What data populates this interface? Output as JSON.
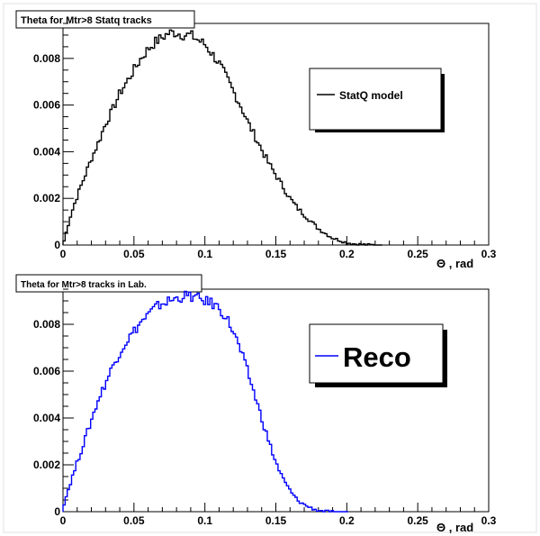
{
  "chart_data": [
    {
      "type": "line",
      "title": "Theta for Mtr>8 Statq tracks",
      "xlabel": "",
      "ylabel": "",
      "xlim": [
        0,
        0.3
      ],
      "ylim": [
        0,
        0.0095
      ],
      "x_ticks": [
        "0",
        "0.05",
        "0.1",
        "0.15",
        "0.2",
        "0.25",
        "0.3"
      ],
      "y_ticks": [
        "0",
        "0.002",
        "0.004",
        "0.006",
        "0.008"
      ],
      "legend": {
        "placement": "top-right",
        "entries": [
          "StatQ model"
        ]
      },
      "color": "#000000",
      "series": [
        {
          "name": "StatQ model",
          "x": [
            0.0,
            0.005,
            0.01,
            0.015,
            0.02,
            0.025,
            0.03,
            0.035,
            0.04,
            0.045,
            0.05,
            0.055,
            0.06,
            0.065,
            0.07,
            0.075,
            0.08,
            0.085,
            0.09,
            0.095,
            0.1,
            0.105,
            0.11,
            0.115,
            0.12,
            0.125,
            0.13,
            0.135,
            0.14,
            0.145,
            0.15,
            0.155,
            0.16,
            0.165,
            0.17,
            0.175,
            0.18,
            0.185,
            0.19,
            0.195,
            0.2,
            0.205,
            0.21,
            0.215,
            0.22,
            0.225
          ],
          "values": [
            0.0,
            0.0012,
            0.0021,
            0.0029,
            0.0037,
            0.0044,
            0.0052,
            0.0058,
            0.0065,
            0.007,
            0.0075,
            0.008,
            0.0084,
            0.0087,
            0.0089,
            0.0091,
            0.0091,
            0.009,
            0.009,
            0.0088,
            0.0086,
            0.0082,
            0.0078,
            0.0072,
            0.0066,
            0.006,
            0.0053,
            0.0047,
            0.0041,
            0.0035,
            0.003,
            0.0025,
            0.002,
            0.0016,
            0.0013,
            0.001,
            0.0007,
            0.0005,
            0.0003,
            0.0002,
            0.0001,
            5e-05,
            3e-05,
            1e-05,
            0.0,
            0.0
          ]
        }
      ]
    },
    {
      "type": "line",
      "title": "Theta for Mtr>8 tracks in Lab.",
      "xlabel": "Θ , rad",
      "ylabel": "",
      "xlim": [
        0,
        0.3
      ],
      "ylim": [
        0,
        0.0095
      ],
      "x_ticks": [
        "0",
        "0.05",
        "0.1",
        "0.15",
        "0.2",
        "0.25",
        "0.3"
      ],
      "y_ticks": [
        "0",
        "0.002",
        "0.004",
        "0.006",
        "0.008"
      ],
      "legend": {
        "placement": "top-right",
        "entries": [
          "Reco"
        ]
      },
      "color": "#0000ff",
      "series": [
        {
          "name": "Reco",
          "x": [
            0.0,
            0.005,
            0.01,
            0.015,
            0.02,
            0.025,
            0.03,
            0.035,
            0.04,
            0.045,
            0.05,
            0.055,
            0.06,
            0.065,
            0.07,
            0.075,
            0.08,
            0.085,
            0.09,
            0.095,
            0.1,
            0.105,
            0.11,
            0.115,
            0.12,
            0.125,
            0.13,
            0.135,
            0.14,
            0.145,
            0.15,
            0.155,
            0.16,
            0.165,
            0.17,
            0.175,
            0.18,
            0.185,
            0.19,
            0.195,
            0.2
          ],
          "values": [
            0.0002,
            0.0012,
            0.0021,
            0.003,
            0.0039,
            0.0048,
            0.0055,
            0.0062,
            0.0068,
            0.0073,
            0.0077,
            0.0081,
            0.0084,
            0.0087,
            0.0089,
            0.009,
            0.0091,
            0.0092,
            0.0092,
            0.0091,
            0.009,
            0.0089,
            0.0087,
            0.0083,
            0.0077,
            0.0069,
            0.006,
            0.005,
            0.004,
            0.003,
            0.0021,
            0.0014,
            0.0009,
            0.0005,
            0.0003,
            0.00015,
            5e-05,
            2e-05,
            0.0,
            0.0,
            0.0
          ]
        }
      ]
    }
  ]
}
